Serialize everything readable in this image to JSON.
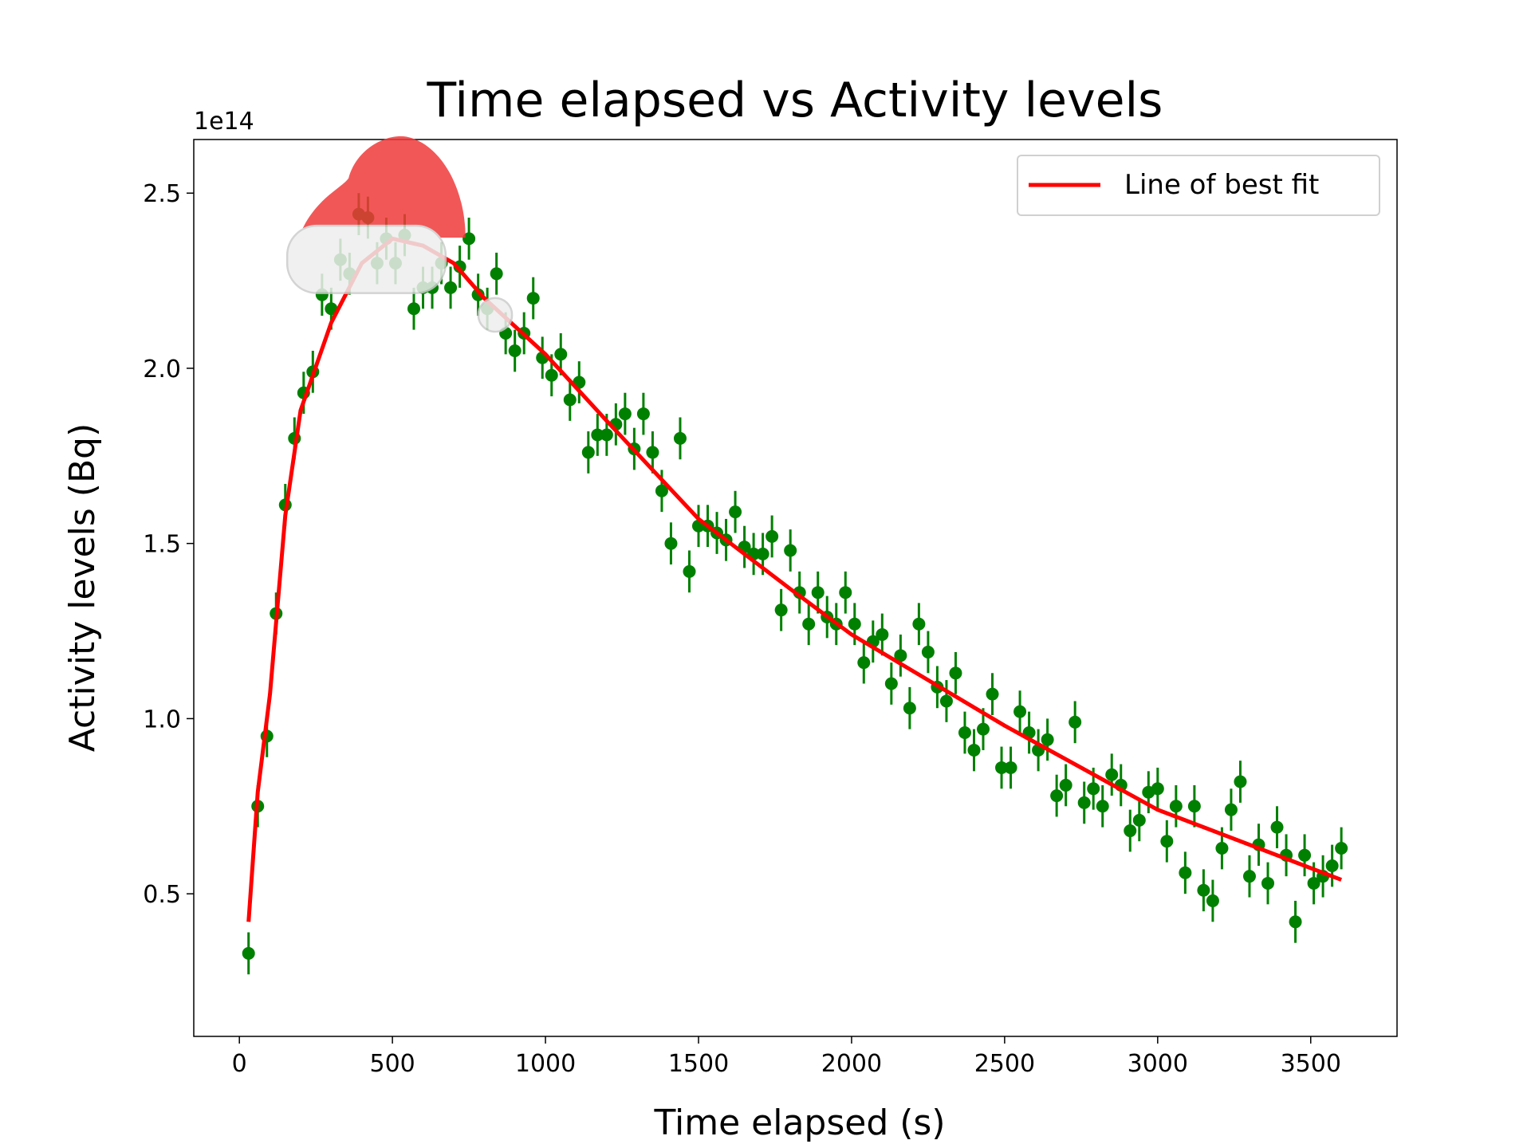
{
  "chart_data": {
    "type": "scatter",
    "title": "Time elapsed vs Activity levels",
    "title_color": "green",
    "xlabel": "Time elapsed (s)",
    "ylabel": "Activity levels (Bq)",
    "y_offset": "1e14",
    "xlim": [
      -149,
      3782
    ],
    "ylim": [
      0.093,
      2.653
    ],
    "xticks": [
      0,
      500,
      1000,
      1500,
      2000,
      2500,
      3000,
      3500
    ],
    "yticks": [
      0.5,
      {
        "value": 1.0,
        "label": "1.0"
      },
      1.5,
      {
        "value": 2.0,
        "label": "2.0"
      },
      2.5
    ],
    "legend": "upper right",
    "points": {
      "color": "green",
      "yerr": 0.06,
      "x": [
        30,
        60,
        90,
        120,
        150,
        180,
        210,
        240,
        270,
        300,
        330,
        360,
        390,
        420,
        450,
        480,
        510,
        540,
        570,
        600,
        630,
        660,
        690,
        720,
        750,
        780,
        810,
        840,
        870,
        900,
        930,
        960,
        990,
        1020,
        1050,
        1080,
        1110,
        1140,
        1170,
        1200,
        1230,
        1260,
        1290,
        1320,
        1350,
        1380,
        1410,
        1440,
        1470,
        1500,
        1530,
        1560,
        1590,
        1620,
        1650,
        1680,
        1710,
        1740,
        1770,
        1800,
        1830,
        1860,
        1890,
        1920,
        1950,
        1980,
        2010,
        2040,
        2070,
        2100,
        2130,
        2160,
        2190,
        2220,
        2250,
        2280,
        2310,
        2340,
        2370,
        2400,
        2430,
        2460,
        2490,
        2520,
        2550,
        2580,
        2610,
        2640,
        2670,
        2700,
        2730,
        2760,
        2790,
        2820,
        2850,
        2880,
        2910,
        2940,
        2970,
        3000,
        3030,
        3060,
        3090,
        3120,
        3150,
        3180,
        3210,
        3240,
        3270,
        3300,
        3330,
        3360,
        3390,
        3420,
        3450,
        3480,
        3510,
        3540,
        3570,
        3600
      ],
      "values": [
        0.33,
        0.75,
        0.95,
        1.3,
        1.61,
        1.8,
        1.93,
        1.99,
        2.21,
        2.17,
        2.31,
        2.27,
        2.44,
        2.43,
        2.3,
        2.37,
        2.3,
        2.38,
        2.17,
        2.23,
        2.23,
        2.3,
        2.23,
        2.29,
        2.37,
        2.21,
        2.17,
        2.27,
        2.1,
        2.05,
        2.1,
        2.2,
        2.03,
        1.98,
        2.04,
        1.91,
        1.96,
        1.76,
        1.81,
        1.81,
        1.84,
        1.87,
        1.77,
        1.87,
        1.76,
        1.65,
        1.5,
        1.8,
        1.42,
        1.55,
        1.55,
        1.53,
        1.51,
        1.59,
        1.49,
        1.47,
        1.47,
        1.52,
        1.31,
        1.48,
        1.36,
        1.27,
        1.36,
        1.29,
        1.27,
        1.36,
        1.27,
        1.16,
        1.22,
        1.24,
        1.1,
        1.18,
        1.03,
        1.27,
        1.19,
        1.09,
        1.05,
        1.13,
        0.96,
        0.91,
        0.97,
        1.07,
        0.86,
        0.86,
        1.02,
        0.96,
        0.91,
        0.94,
        0.78,
        0.81,
        0.99,
        0.76,
        0.8,
        0.75,
        0.84,
        0.81,
        0.68,
        0.71,
        0.79,
        0.8,
        0.65,
        0.75,
        0.56,
        0.75,
        0.51,
        0.48,
        0.63,
        0.74,
        0.82,
        0.55,
        0.64,
        0.53,
        0.69,
        0.61,
        0.42,
        0.61,
        0.53,
        0.55,
        0.58,
        0.63
      ]
    },
    "series": [
      {
        "name": "Line of best fit",
        "color": "red",
        "x": [
          30,
          60,
          100,
          150,
          200,
          300,
          400,
          500,
          600,
          700,
          800,
          1000,
          1200,
          1500,
          1800,
          2000,
          2500,
          3000,
          3600
        ],
        "values": [
          0.42,
          0.79,
          1.07,
          1.58,
          1.88,
          2.13,
          2.3,
          2.37,
          2.35,
          2.3,
          2.2,
          2.04,
          1.85,
          1.57,
          1.37,
          1.24,
          0.98,
          0.74,
          0.54
        ]
      }
    ]
  }
}
